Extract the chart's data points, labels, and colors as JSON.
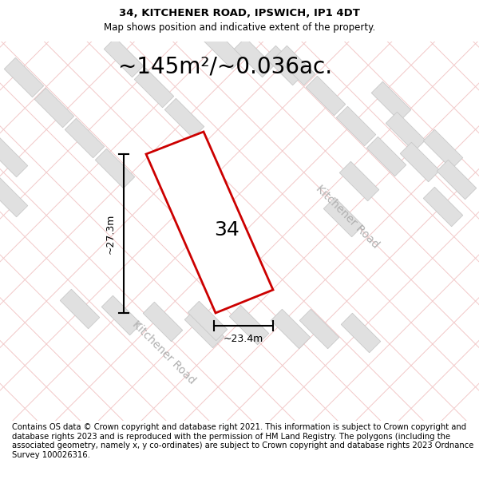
{
  "title_line1": "34, KITCHENER ROAD, IPSWICH, IP1 4DT",
  "title_line2": "Map shows position and indicative extent of the property.",
  "area_text": "~145m²/~0.036ac.",
  "number_label": "34",
  "width_label": "~23.4m",
  "height_label": "~27.3m",
  "road_label1": "Kitchener Road",
  "road_label2": "Kitchener Road",
  "footer_text": "Contains OS data © Crown copyright and database right 2021. This information is subject to Crown copyright and database rights 2023 and is reproduced with the permission of HM Land Registry. The polygons (including the associated geometry, namely x, y co-ordinates) are subject to Crown copyright and database rights 2023 Ordnance Survey 100026316.",
  "map_bg": "#f8f8f8",
  "grid_color_light": "#f2c8c8",
  "building_color": "#e0e0e0",
  "building_edge": "#c8c8c8",
  "plot_color": "#cc0000",
  "road_text_color": "#b0b0b0",
  "title_fontsize": 9.5,
  "subtitle_fontsize": 8.5,
  "area_fontsize": 20,
  "number_fontsize": 18,
  "dim_fontsize": 9,
  "road_fontsize": 10,
  "footer_fontsize": 7.2
}
